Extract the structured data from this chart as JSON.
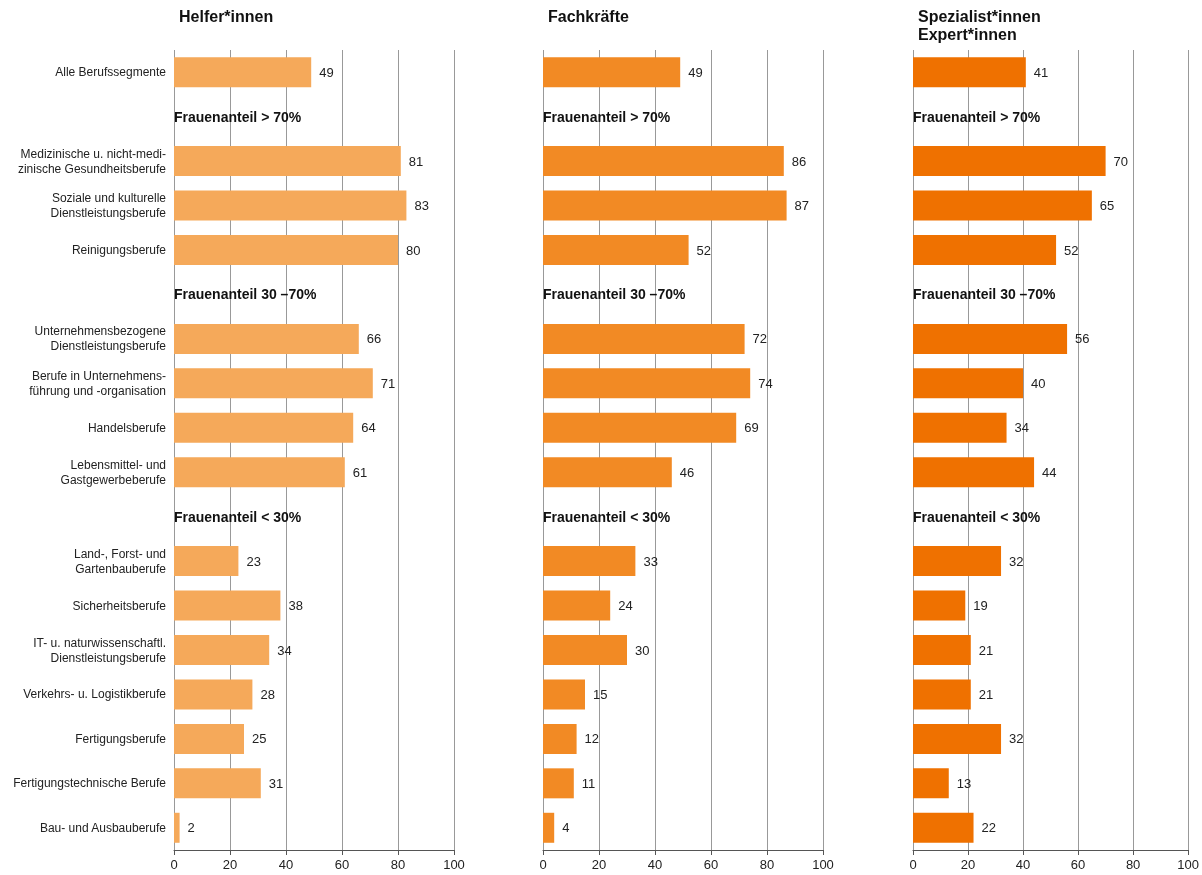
{
  "chart_data": [
    {
      "type": "bar",
      "orientation": "horizontal",
      "title": "Helfer*innen",
      "categories": [
        "Alle Berufssegmente",
        null,
        "Medizinische u. nicht-medi-\nzinische Gesundheitsberufe",
        "Soziale und kulturelle\nDienstleistungsberufe",
        "Reinigungsberufe",
        null,
        "Unternehmensbezogene\nDienstleistungsberufe",
        "Berufe in Unternehmens-\nführung und -organisation",
        "Handelsberufe",
        "Lebensmittel- und\nGastgewerbeberufe",
        null,
        "Land-, Forst- und\nGartenbauberufe",
        "Sicherheitsberufe",
        "IT- u. naturwissenschaftl.\nDienstleistungsberufe",
        "Verkehrs- u. Logistikberufe",
        "Fertigungsberufe",
        "Fertigungstechnische Berufe",
        "Bau- und Ausbauberufe"
      ],
      "values": [
        49,
        null,
        81,
        83,
        80,
        null,
        66,
        71,
        64,
        61,
        null,
        23,
        38,
        34,
        28,
        25,
        31,
        2
      ],
      "color": "#f5a95a",
      "xlim": [
        0,
        100
      ],
      "xticks": [
        0,
        20,
        40,
        60,
        80,
        100
      ],
      "grid": "x",
      "data_labels": true,
      "annotations": [
        "Frauenanteil > 70%",
        "Frauenanteil 30 –70%",
        "Frauenanteil < 30%"
      ]
    },
    {
      "type": "bar",
      "orientation": "horizontal",
      "title": "Fachkräfte",
      "categories": [
        "Alle Berufssegmente",
        null,
        "Medizinische u. nicht-medi-\nzinische Gesundheitsberufe",
        "Soziale und kulturelle\nDienstleistungsberufe",
        "Reinigungsberufe",
        null,
        "Unternehmensbezogene\nDienstleistungsberufe",
        "Berufe in Unternehmens-\nführung und -organisation",
        "Handelsberufe",
        "Lebensmittel- und\nGastgewerbeberufe",
        null,
        "Land-, Forst- und\nGartenbauberufe",
        "Sicherheitsberufe",
        "IT- u. naturwissenschaftl.\nDienstleistungsberufe",
        "Verkehrs- u. Logistikberufe",
        "Fertigungsberufe",
        "Fertigungstechnische Berufe",
        "Bau- und Ausbauberufe"
      ],
      "values": [
        49,
        null,
        86,
        87,
        52,
        null,
        72,
        74,
        69,
        46,
        null,
        33,
        24,
        30,
        15,
        12,
        11,
        4
      ],
      "color": "#f28a24",
      "xlim": [
        0,
        100
      ],
      "xticks": [
        0,
        20,
        40,
        60,
        80,
        100
      ],
      "grid": "x",
      "data_labels": true,
      "tick_labels": "x",
      "annotations": [
        "Frauenanteil > 70%",
        "Frauenanteil 30 –70%",
        "Frauenanteil < 30%"
      ]
    },
    {
      "type": "bar",
      "orientation": "horizontal",
      "title": "Spezialist*innen\nExpert*innen",
      "categories": [
        "Alle Berufssegmente",
        null,
        "Medizinische u. nicht-medi-\nzinische Gesundheitsberufe",
        "Soziale und kulturelle\nDienstleistungsberufe",
        "Reinigungsberufe",
        null,
        "Unternehmensbezogene\nDienstleistungsberufe",
        "Berufe in Unternehmens-\nführung und -organisation",
        "Handelsberufe",
        "Lebensmittel- und\nGastgewerbeberufe",
        null,
        "Land-, Forst- und\nGartenbauberufe",
        "Sicherheitsberufe",
        "IT- u. naturwissenschaftl.\nDienstleistungsberufe",
        "Verkehrs- u. Logistikberufe",
        "Fertigungsberufe",
        "Fertigungstechnische Berufe",
        "Bau- und Ausbauberufe"
      ],
      "values": [
        41,
        null,
        70,
        65,
        52,
        null,
        56,
        40,
        34,
        44,
        null,
        32,
        19,
        21,
        21,
        32,
        13,
        22
      ],
      "color": "#ef7100",
      "xlim": [
        0,
        100
      ],
      "xticks": [
        0,
        20,
        40,
        60,
        80,
        100
      ],
      "grid": "x",
      "data_labels": true,
      "tick_labels": "x",
      "annotations": [
        "Frauenanteil > 70%",
        "Frauenanteil 30 –70%",
        "Frauenanteil < 30%"
      ]
    }
  ]
}
